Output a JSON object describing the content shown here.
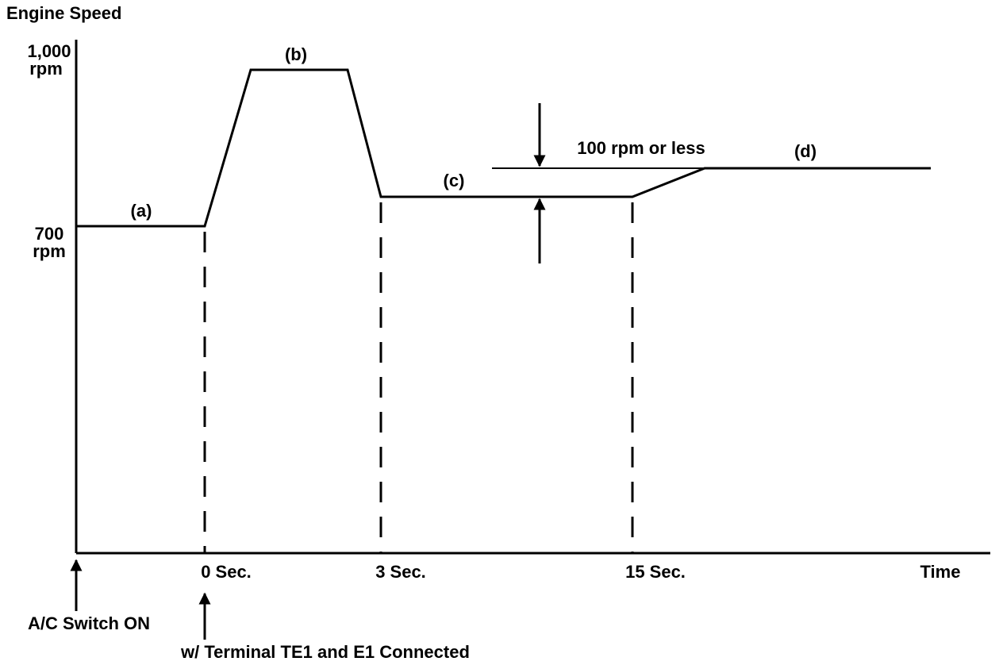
{
  "header": {
    "title": "Engine Speed"
  },
  "y_labels": [
    {
      "value": "1,000",
      "unit": "rpm"
    },
    {
      "value": "700",
      "unit": "rpm"
    }
  ],
  "phases": [
    "(a)",
    "(b)",
    "(c)",
    "(d)"
  ],
  "difference_note": "100 rpm or less",
  "time_labels": [
    "0 Sec.",
    "3 Sec.",
    "15 Sec.",
    "Time"
  ],
  "events": [
    "A/C Switch ON",
    "w/ Terminal TE1 and E1 Connected"
  ]
}
